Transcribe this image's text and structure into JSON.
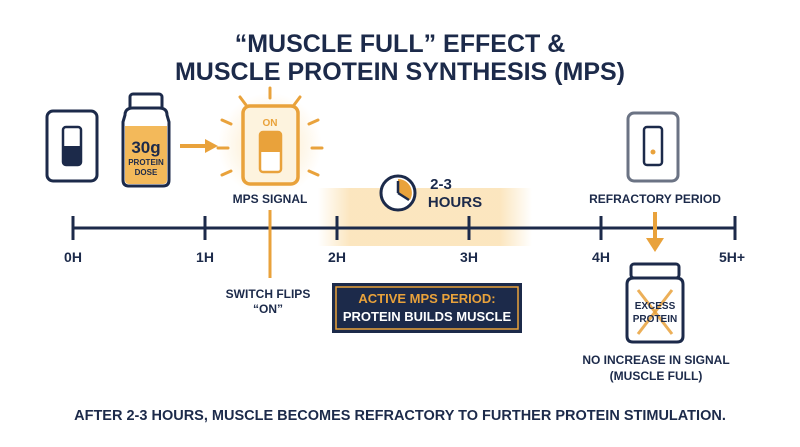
{
  "title": {
    "line1": "“MUSCLE FULL” EFFECT &",
    "line2": "MUSCLE PROTEIN SYNTHESIS (MPS)"
  },
  "dose": {
    "amount": "30g",
    "label_line1": "PROTEIN",
    "label_line2": "DOSE"
  },
  "switch_on": {
    "label": "ON",
    "caption": "MPS SIGNAL"
  },
  "duration": {
    "line1": "2-3",
    "line2": "HOURS"
  },
  "refractory": {
    "caption": "REFRACTORY PERIOD"
  },
  "timeline": {
    "ticks": [
      "0H",
      "1H",
      "2H",
      "3H",
      "4H",
      "5H+"
    ]
  },
  "switch_flip": {
    "line1": "SWITCH FLIPS",
    "line2": "“ON”"
  },
  "active_box": {
    "line1": "ACTIVE MPS PERIOD:",
    "line2": "PROTEIN BUILDS MUSCLE"
  },
  "excess": {
    "line1": "EXCESS",
    "line2": "PROTEIN"
  },
  "no_increase": {
    "line1": "NO INCREASE IN SIGNAL",
    "line2": "(MUSCLE FULL)"
  },
  "footer": "AFTER 2-3 HOURS, MUSCLE BECOMES REFRACTORY TO FURTHER PROTEIN STIMULATION.",
  "colors": {
    "navy": "#1c2a4a",
    "orange": "#e9a23b",
    "light_orange": "#f8e0b2",
    "gray": "#6b7384"
  }
}
